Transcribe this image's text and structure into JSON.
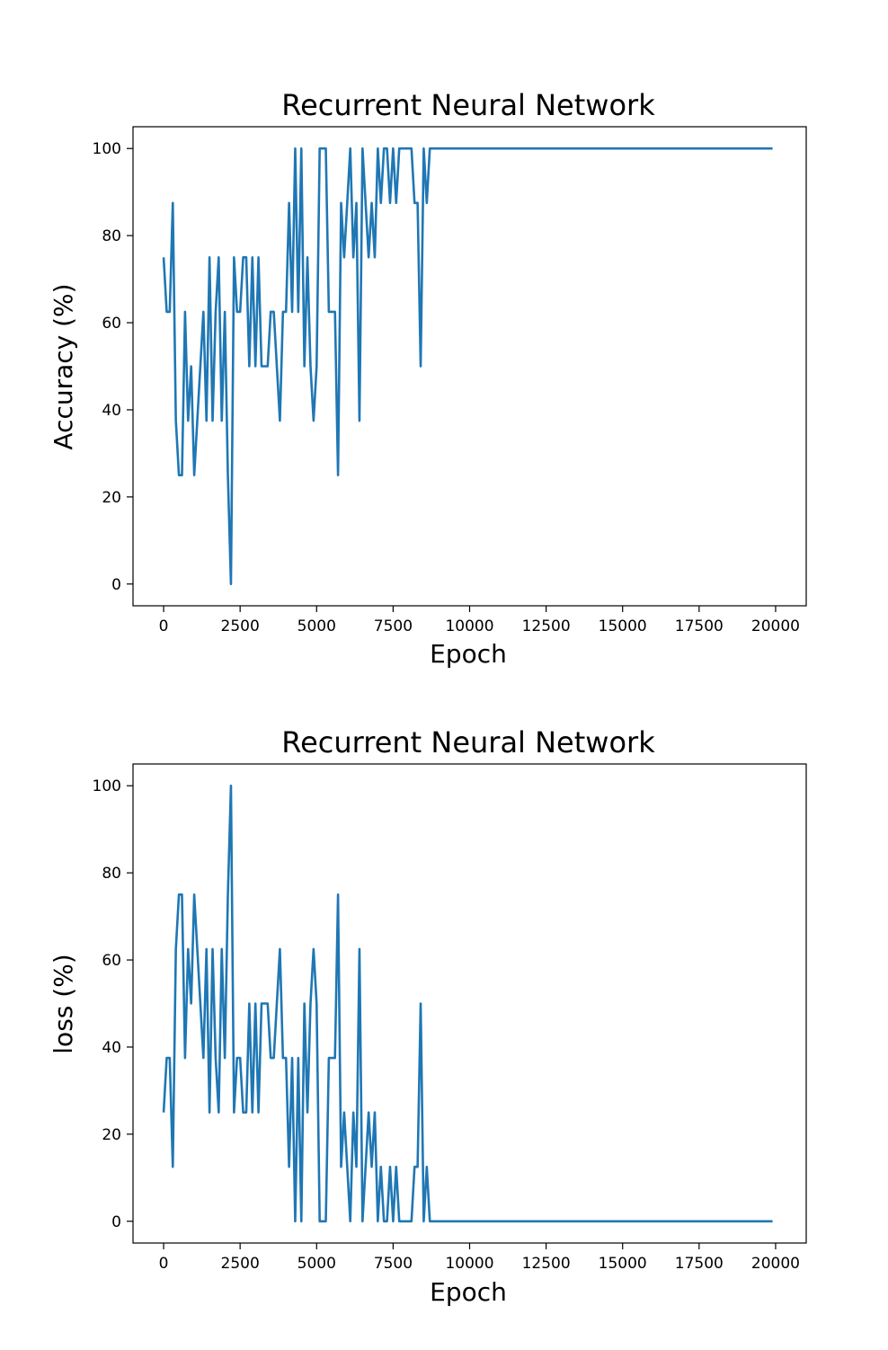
{
  "colors": {
    "series": "#1f77b4",
    "background": "#ffffff"
  },
  "chart_data": [
    {
      "type": "line",
      "title": "Recurrent Neural Network",
      "xlabel": "Epoch",
      "ylabel": "Accuracy (%)",
      "xlim": [
        -1000,
        21000
      ],
      "ylim": [
        -5,
        105
      ],
      "grid": false,
      "xticks": [
        0,
        2500,
        5000,
        7500,
        10000,
        12500,
        15000,
        17500,
        20000
      ],
      "yticks": [
        0,
        20,
        40,
        60,
        80,
        100
      ],
      "series": [
        {
          "x": [
            0,
            100,
            200,
            300,
            400,
            500,
            600,
            700,
            800,
            900,
            1000,
            1100,
            1200,
            1300,
            1400,
            1500,
            1600,
            1700,
            1800,
            1900,
            2000,
            2100,
            2200,
            2300,
            2400,
            2500,
            2600,
            2700,
            2800,
            2900,
            3000,
            3100,
            3200,
            3300,
            3400,
            3500,
            3600,
            3700,
            3800,
            3900,
            4000,
            4100,
            4200,
            4300,
            4400,
            4500,
            4600,
            4700,
            4800,
            4900,
            5000,
            5100,
            5200,
            5300,
            5400,
            5500,
            5600,
            5700,
            5800,
            5900,
            6000,
            6100,
            6200,
            6300,
            6400,
            6500,
            6600,
            6700,
            6800,
            6900,
            7000,
            7100,
            7200,
            7300,
            7400,
            7500,
            7600,
            7700,
            7800,
            7900,
            8000,
            8100,
            8200,
            8300,
            8400,
            8500,
            8600,
            8700,
            8800,
            8900,
            9000,
            10000,
            11000,
            12000,
            13000,
            14000,
            15000,
            16000,
            17000,
            18000,
            19000,
            19900
          ],
          "values": [
            75,
            62.5,
            62.5,
            87.5,
            37.5,
            25,
            25,
            62.5,
            37.5,
            50,
            25,
            37.5,
            50,
            62.5,
            37.5,
            75,
            37.5,
            62.5,
            75,
            37.5,
            62.5,
            25,
            0,
            75,
            62.5,
            62.5,
            75,
            75,
            50,
            75,
            50,
            75,
            50,
            50,
            50,
            62.5,
            62.5,
            50,
            37.5,
            62.5,
            62.5,
            87.5,
            62.5,
            100,
            62.5,
            100,
            50,
            75,
            50,
            37.5,
            50,
            100,
            100,
            100,
            62.5,
            62.5,
            62.5,
            25,
            87.5,
            75,
            87.5,
            100,
            75,
            87.5,
            37.5,
            100,
            87.5,
            75,
            87.5,
            75,
            100,
            87.5,
            100,
            100,
            87.5,
            100,
            87.5,
            100,
            100,
            100,
            100,
            100,
            87.5,
            87.5,
            50,
            100,
            87.5,
            100,
            100,
            100,
            100,
            100,
            100,
            100,
            100,
            100,
            100,
            100,
            100,
            100,
            100,
            100
          ]
        }
      ]
    },
    {
      "type": "line",
      "title": "Recurrent Neural Network",
      "xlabel": "Epoch",
      "ylabel": "loss (%)",
      "xlim": [
        -1000,
        21000
      ],
      "ylim": [
        -5,
        105
      ],
      "grid": false,
      "xticks": [
        0,
        2500,
        5000,
        7500,
        10000,
        12500,
        15000,
        17500,
        20000
      ],
      "yticks": [
        0,
        20,
        40,
        60,
        80,
        100
      ],
      "series": [
        {
          "x": [
            0,
            100,
            200,
            300,
            400,
            500,
            600,
            700,
            800,
            900,
            1000,
            1100,
            1200,
            1300,
            1400,
            1500,
            1600,
            1700,
            1800,
            1900,
            2000,
            2100,
            2200,
            2300,
            2400,
            2500,
            2600,
            2700,
            2800,
            2900,
            3000,
            3100,
            3200,
            3300,
            3400,
            3500,
            3600,
            3700,
            3800,
            3900,
            4000,
            4100,
            4200,
            4300,
            4400,
            4500,
            4600,
            4700,
            4800,
            4900,
            5000,
            5100,
            5200,
            5300,
            5400,
            5500,
            5600,
            5700,
            5800,
            5900,
            6000,
            6100,
            6200,
            6300,
            6400,
            6500,
            6600,
            6700,
            6800,
            6900,
            7000,
            7100,
            7200,
            7300,
            7400,
            7500,
            7600,
            7700,
            7800,
            7900,
            8000,
            8100,
            8200,
            8300,
            8400,
            8500,
            8600,
            8700,
            8800,
            8900,
            9000,
            10000,
            11000,
            12000,
            13000,
            14000,
            15000,
            16000,
            17000,
            18000,
            19000,
            19900
          ],
          "values": [
            25,
            37.5,
            37.5,
            12.5,
            62.5,
            75,
            75,
            37.5,
            62.5,
            50,
            75,
            62.5,
            50,
            37.5,
            62.5,
            25,
            62.5,
            37.5,
            25,
            62.5,
            37.5,
            75,
            100,
            25,
            37.5,
            37.5,
            25,
            25,
            50,
            25,
            50,
            25,
            50,
            50,
            50,
            37.5,
            37.5,
            50,
            62.5,
            37.5,
            37.5,
            12.5,
            37.5,
            0,
            37.5,
            0,
            50,
            25,
            50,
            62.5,
            50,
            0,
            0,
            0,
            37.5,
            37.5,
            37.5,
            75,
            12.5,
            25,
            12.5,
            0,
            25,
            12.5,
            62.5,
            0,
            12.5,
            25,
            12.5,
            25,
            0,
            12.5,
            0,
            0,
            12.5,
            0,
            12.5,
            0,
            0,
            0,
            0,
            0,
            12.5,
            12.5,
            50,
            0,
            12.5,
            0,
            0,
            0,
            0,
            0,
            0,
            0,
            0,
            0,
            0,
            0,
            0,
            0,
            0,
            0
          ]
        }
      ]
    }
  ]
}
